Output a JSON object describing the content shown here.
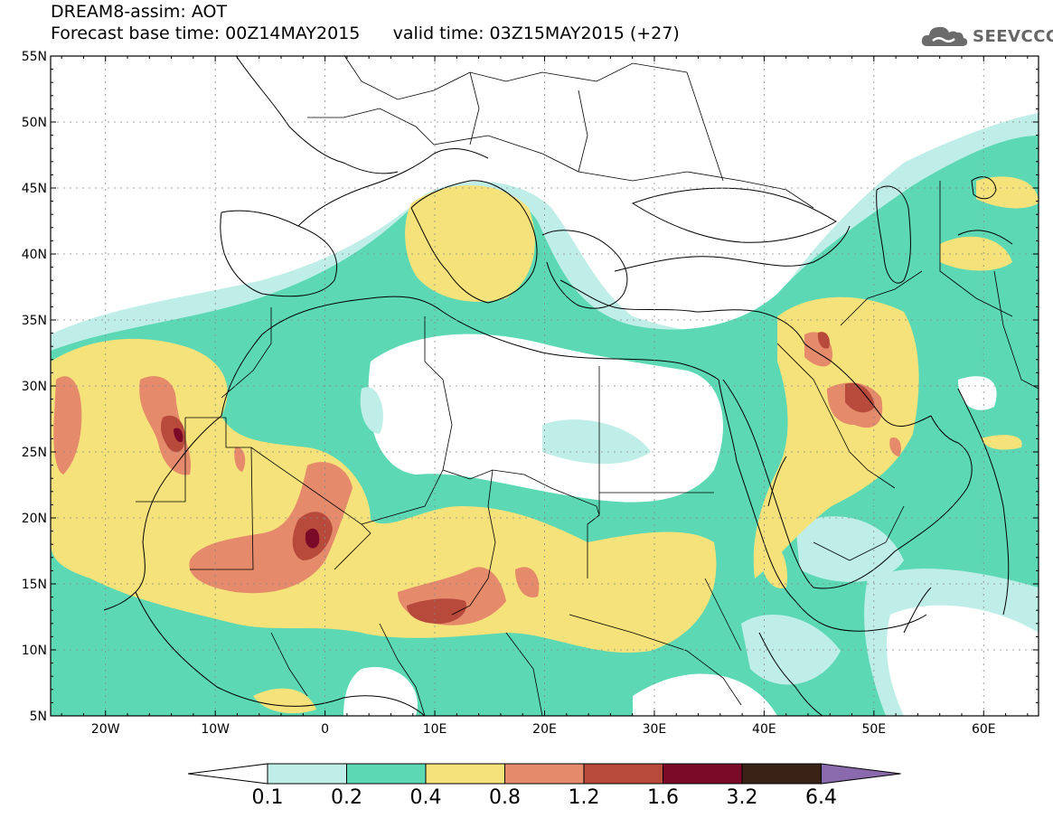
{
  "header": {
    "title": "DREAM8-assim: AOT",
    "base_time": "Forecast base time: 00Z14MAY2015",
    "valid_time": "valid time: 03Z15MAY2015 (+27)"
  },
  "logo": {
    "text": "SEEVCCC",
    "icon": "cloud-icon"
  },
  "map": {
    "lat_labels": [
      "55N",
      "50N",
      "45N",
      "40N",
      "35N",
      "30N",
      "25N",
      "20N",
      "15N",
      "10N",
      "5N"
    ],
    "lon_labels": [
      "20W",
      "10W",
      "0",
      "10E",
      "20E",
      "30E",
      "40E",
      "50E",
      "60E"
    ],
    "lon_range": [
      -25,
      65
    ],
    "lat_range": [
      5,
      55
    ]
  },
  "colorbar": {
    "levels": [
      "0.1",
      "0.2",
      "0.4",
      "0.8",
      "1.2",
      "1.6",
      "3.2",
      "6.4"
    ],
    "colors": [
      "#ffffff",
      "#bfeee8",
      "#5cd9b4",
      "#f5e27a",
      "#e58a6b",
      "#b84a3c",
      "#7a0a28",
      "#3a2216",
      "#8a6aac"
    ]
  },
  "palette": {
    "c1": "#bfeee8",
    "c2": "#5cd9b4",
    "c3": "#f5e27a",
    "c4": "#e58a6b",
    "c5": "#b84a3c",
    "c6": "#7a0a28",
    "c7": "#3a2216"
  }
}
